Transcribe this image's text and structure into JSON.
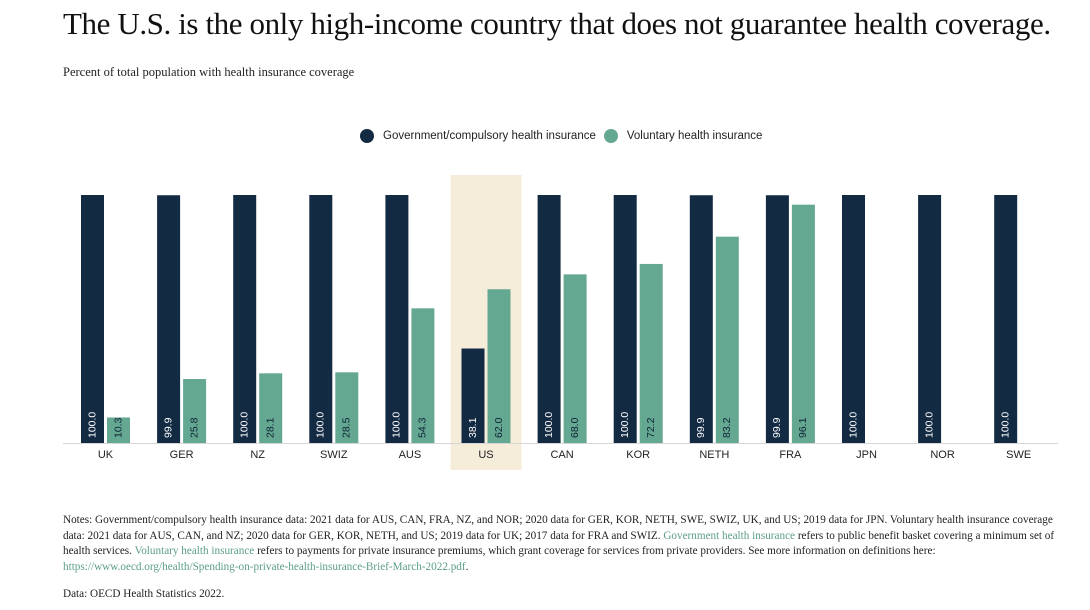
{
  "title": "The U.S. is the only high-income country that does not guarantee health coverage.",
  "subtitle": "Percent of total population with health insurance coverage",
  "colors": {
    "government": "#132a43",
    "voluntary": "#65a891",
    "highlight": "#f5ecda",
    "link": "#5c9e88"
  },
  "chart_data": {
    "type": "bar",
    "title": "The U.S. is the only high-income country that does not guarantee health coverage.",
    "subtitle": "Percent of total population with health insurance coverage",
    "categories": [
      "UK",
      "GER",
      "NZ",
      "SWIZ",
      "AUS",
      "US",
      "CAN",
      "KOR",
      "NETH",
      "FRA",
      "JPN",
      "NOR",
      "SWE"
    ],
    "series": [
      {
        "name": "Government/compulsory health insurance",
        "color": "#132a43",
        "values": [
          100.0,
          99.9,
          100.0,
          100.0,
          100.0,
          38.1,
          100.0,
          100.0,
          99.9,
          99.9,
          100.0,
          100.0,
          100.0
        ],
        "labels": [
          "100.0",
          "99.9",
          "100.0",
          "100.0",
          "100.0",
          "38.1",
          "100.0",
          "100.0",
          "99.9",
          "99.9",
          "100.0",
          "100.0",
          "100.0"
        ]
      },
      {
        "name": "Voluntary health insurance",
        "color": "#65a891",
        "values": [
          10.3,
          25.8,
          28.1,
          28.5,
          54.3,
          62.0,
          68.0,
          72.2,
          83.2,
          96.1,
          null,
          null,
          null
        ],
        "labels": [
          "10.3",
          "25.8",
          "28.1",
          "28.5",
          "54.3",
          "62.0",
          "68.0",
          "72.2",
          "83.2",
          "96.1",
          null,
          null,
          null
        ]
      }
    ],
    "highlight_category": "US",
    "ylim": [
      0,
      100
    ],
    "grid": false,
    "legend_position": "top-center"
  },
  "notes": {
    "prefix": "Notes: Government/compulsory health insurance data: 2021 data for AUS, CAN, FRA, NZ, and NOR; 2020 data for GER, KOR, NETH, SWE, SWIZ, UK, and US; 2019 data for JPN. Voluntary health insurance coverage data: 2021 data for AUS, CAN, and NZ; 2020 data for GER, KOR, NETH, and US; 2019 data for UK; 2017 data for FRA and SWIZ. ",
    "link1": "Government health insurance",
    "mid": " refers to public benefit basket covering a minimum set of health services. ",
    "link2": "Voluntary health insurance",
    "mid2": " refers to payments for private insurance premiums, which grant coverage for services from private providers. See more information on definitions here: ",
    "link3": "https://www.oecd.org/health/Spending-on-private-health-insurance-Brief-March-2022.pdf",
    "suffix": "."
  },
  "source": "Data: OECD Health Statistics 2022."
}
